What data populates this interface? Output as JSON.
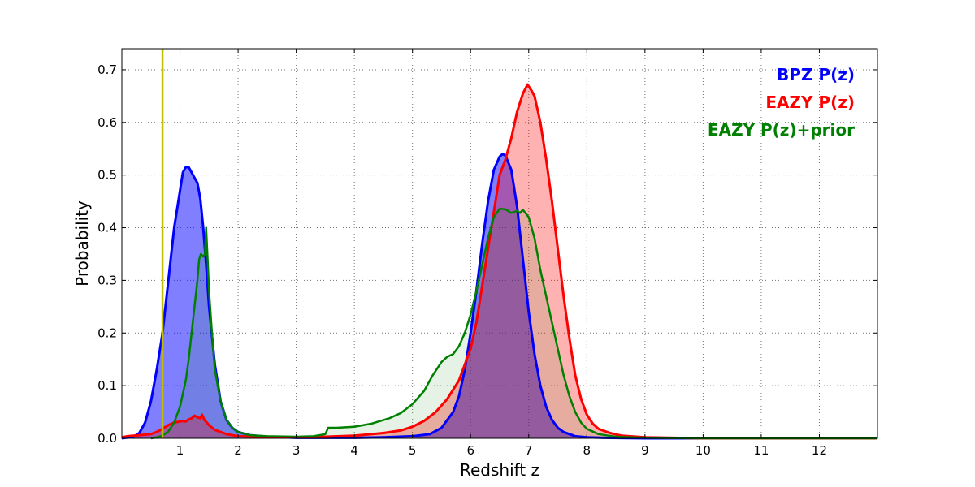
{
  "chart_data": {
    "type": "line",
    "title": "",
    "xlabel": "Redshift z",
    "ylabel": "Probability",
    "xlim": [
      0,
      13
    ],
    "ylim": [
      0,
      0.74
    ],
    "grid": true,
    "legend_position": "top-right",
    "x_ticks": [
      1,
      2,
      3,
      4,
      5,
      6,
      7,
      8,
      9,
      10,
      11,
      12
    ],
    "y_ticks": [
      0.0,
      0.1,
      0.2,
      0.3,
      0.4,
      0.5,
      0.6,
      0.7
    ],
    "x_tick_labels": [
      "1",
      "2",
      "3",
      "4",
      "5",
      "6",
      "7",
      "8",
      "9",
      "10",
      "11",
      "12"
    ],
    "y_tick_labels": [
      "0.0",
      "0.1",
      "0.2",
      "0.3",
      "0.4",
      "0.5",
      "0.6",
      "0.7"
    ],
    "vertical_line": {
      "x": 0.7,
      "color": "#bfbf00"
    },
    "series": [
      {
        "name": "BPZ P(z)",
        "color": "#0000ff",
        "fill": "#0000ff",
        "fill_opacity": 0.5,
        "line_width": 3,
        "points": [
          [
            0,
            0
          ],
          [
            0.2,
            0.003
          ],
          [
            0.3,
            0.01
          ],
          [
            0.4,
            0.03
          ],
          [
            0.5,
            0.07
          ],
          [
            0.6,
            0.13
          ],
          [
            0.7,
            0.2
          ],
          [
            0.8,
            0.3
          ],
          [
            0.9,
            0.4
          ],
          [
            1.0,
            0.47
          ],
          [
            1.05,
            0.505
          ],
          [
            1.1,
            0.515
          ],
          [
            1.15,
            0.515
          ],
          [
            1.2,
            0.505
          ],
          [
            1.25,
            0.495
          ],
          [
            1.3,
            0.485
          ],
          [
            1.35,
            0.455
          ],
          [
            1.4,
            0.4
          ],
          [
            1.45,
            0.33
          ],
          [
            1.5,
            0.25
          ],
          [
            1.6,
            0.14
          ],
          [
            1.7,
            0.07
          ],
          [
            1.8,
            0.035
          ],
          [
            1.9,
            0.02
          ],
          [
            2.0,
            0.012
          ],
          [
            2.2,
            0.006
          ],
          [
            2.5,
            0.003
          ],
          [
            3.0,
            0.001
          ],
          [
            4.0,
            0.001
          ],
          [
            4.5,
            0.002
          ],
          [
            5.0,
            0.004
          ],
          [
            5.3,
            0.008
          ],
          [
            5.5,
            0.02
          ],
          [
            5.7,
            0.05
          ],
          [
            5.8,
            0.08
          ],
          [
            5.9,
            0.13
          ],
          [
            6.0,
            0.2
          ],
          [
            6.1,
            0.28
          ],
          [
            6.2,
            0.37
          ],
          [
            6.3,
            0.45
          ],
          [
            6.4,
            0.51
          ],
          [
            6.5,
            0.535
          ],
          [
            6.55,
            0.54
          ],
          [
            6.6,
            0.537
          ],
          [
            6.7,
            0.51
          ],
          [
            6.8,
            0.44
          ],
          [
            6.9,
            0.34
          ],
          [
            7.0,
            0.24
          ],
          [
            7.1,
            0.16
          ],
          [
            7.2,
            0.1
          ],
          [
            7.3,
            0.06
          ],
          [
            7.4,
            0.035
          ],
          [
            7.5,
            0.02
          ],
          [
            7.6,
            0.012
          ],
          [
            7.8,
            0.004
          ],
          [
            8.0,
            0.002
          ],
          [
            8.3,
            0.001
          ],
          [
            9,
            0
          ],
          [
            13,
            0
          ]
        ]
      },
      {
        "name": "EAZY P(z)",
        "color": "#ff0000",
        "fill": "#ff0000",
        "fill_opacity": 0.3,
        "line_width": 3,
        "points": [
          [
            0,
            0.002
          ],
          [
            0.1,
            0.004
          ],
          [
            0.3,
            0.006
          ],
          [
            0.5,
            0.008
          ],
          [
            0.6,
            0.012
          ],
          [
            0.7,
            0.018
          ],
          [
            0.8,
            0.025
          ],
          [
            0.9,
            0.03
          ],
          [
            1.0,
            0.032
          ],
          [
            1.05,
            0.033
          ],
          [
            1.1,
            0.032
          ],
          [
            1.15,
            0.036
          ],
          [
            1.2,
            0.038
          ],
          [
            1.25,
            0.043
          ],
          [
            1.3,
            0.04
          ],
          [
            1.35,
            0.038
          ],
          [
            1.38,
            0.045
          ],
          [
            1.42,
            0.035
          ],
          [
            1.5,
            0.025
          ],
          [
            1.6,
            0.016
          ],
          [
            1.8,
            0.008
          ],
          [
            2.0,
            0.004
          ],
          [
            2.5,
            0.002
          ],
          [
            3.0,
            0.002
          ],
          [
            3.5,
            0.003
          ],
          [
            4.0,
            0.005
          ],
          [
            4.5,
            0.01
          ],
          [
            4.8,
            0.015
          ],
          [
            5.0,
            0.022
          ],
          [
            5.2,
            0.033
          ],
          [
            5.4,
            0.05
          ],
          [
            5.6,
            0.075
          ],
          [
            5.8,
            0.11
          ],
          [
            6.0,
            0.17
          ],
          [
            6.1,
            0.22
          ],
          [
            6.2,
            0.29
          ],
          [
            6.3,
            0.36
          ],
          [
            6.4,
            0.43
          ],
          [
            6.5,
            0.5
          ],
          [
            6.6,
            0.53
          ],
          [
            6.7,
            0.57
          ],
          [
            6.8,
            0.62
          ],
          [
            6.9,
            0.655
          ],
          [
            6.98,
            0.672
          ],
          [
            7.05,
            0.66
          ],
          [
            7.1,
            0.65
          ],
          [
            7.2,
            0.6
          ],
          [
            7.3,
            0.53
          ],
          [
            7.4,
            0.45
          ],
          [
            7.5,
            0.36
          ],
          [
            7.6,
            0.27
          ],
          [
            7.7,
            0.19
          ],
          [
            7.8,
            0.12
          ],
          [
            7.9,
            0.075
          ],
          [
            8.0,
            0.045
          ],
          [
            8.1,
            0.028
          ],
          [
            8.2,
            0.018
          ],
          [
            8.4,
            0.01
          ],
          [
            8.6,
            0.005
          ],
          [
            9,
            0.002
          ],
          [
            10,
            0
          ],
          [
            13,
            0
          ]
        ]
      },
      {
        "name": "EAZY P(z)+prior",
        "color": "#008000",
        "fill": "#008000",
        "fill_opacity": 0.1,
        "line_width": 2.5,
        "points": [
          [
            0.5,
            0
          ],
          [
            0.6,
            0.002
          ],
          [
            0.7,
            0.005
          ],
          [
            0.8,
            0.013
          ],
          [
            0.9,
            0.03
          ],
          [
            1.0,
            0.06
          ],
          [
            1.1,
            0.11
          ],
          [
            1.15,
            0.15
          ],
          [
            1.2,
            0.2
          ],
          [
            1.25,
            0.25
          ],
          [
            1.3,
            0.3
          ],
          [
            1.33,
            0.34
          ],
          [
            1.36,
            0.35
          ],
          [
            1.4,
            0.345
          ],
          [
            1.43,
            0.35
          ],
          [
            1.45,
            0.4
          ],
          [
            1.48,
            0.33
          ],
          [
            1.5,
            0.28
          ],
          [
            1.55,
            0.2
          ],
          [
            1.6,
            0.13
          ],
          [
            1.7,
            0.07
          ],
          [
            1.8,
            0.035
          ],
          [
            1.9,
            0.02
          ],
          [
            2.0,
            0.012
          ],
          [
            2.2,
            0.006
          ],
          [
            2.5,
            0.004
          ],
          [
            3.0,
            0.003
          ],
          [
            3.3,
            0.004
          ],
          [
            3.5,
            0.008
          ],
          [
            3.55,
            0.02
          ],
          [
            3.7,
            0.02
          ],
          [
            4.0,
            0.022
          ],
          [
            4.3,
            0.028
          ],
          [
            4.6,
            0.038
          ],
          [
            4.8,
            0.048
          ],
          [
            5.0,
            0.065
          ],
          [
            5.2,
            0.09
          ],
          [
            5.35,
            0.12
          ],
          [
            5.5,
            0.145
          ],
          [
            5.6,
            0.155
          ],
          [
            5.7,
            0.16
          ],
          [
            5.8,
            0.175
          ],
          [
            5.9,
            0.2
          ],
          [
            6.0,
            0.235
          ],
          [
            6.1,
            0.28
          ],
          [
            6.2,
            0.33
          ],
          [
            6.3,
            0.38
          ],
          [
            6.4,
            0.42
          ],
          [
            6.5,
            0.436
          ],
          [
            6.6,
            0.435
          ],
          [
            6.7,
            0.428
          ],
          [
            6.8,
            0.432
          ],
          [
            6.85,
            0.428
          ],
          [
            6.9,
            0.434
          ],
          [
            7.0,
            0.42
          ],
          [
            7.1,
            0.38
          ],
          [
            7.2,
            0.32
          ],
          [
            7.3,
            0.27
          ],
          [
            7.4,
            0.22
          ],
          [
            7.5,
            0.17
          ],
          [
            7.6,
            0.12
          ],
          [
            7.7,
            0.08
          ],
          [
            7.8,
            0.05
          ],
          [
            7.9,
            0.03
          ],
          [
            8.0,
            0.018
          ],
          [
            8.2,
            0.008
          ],
          [
            8.5,
            0.003
          ],
          [
            9,
            0.001
          ],
          [
            10,
            0
          ],
          [
            13,
            0
          ]
        ]
      }
    ]
  }
}
